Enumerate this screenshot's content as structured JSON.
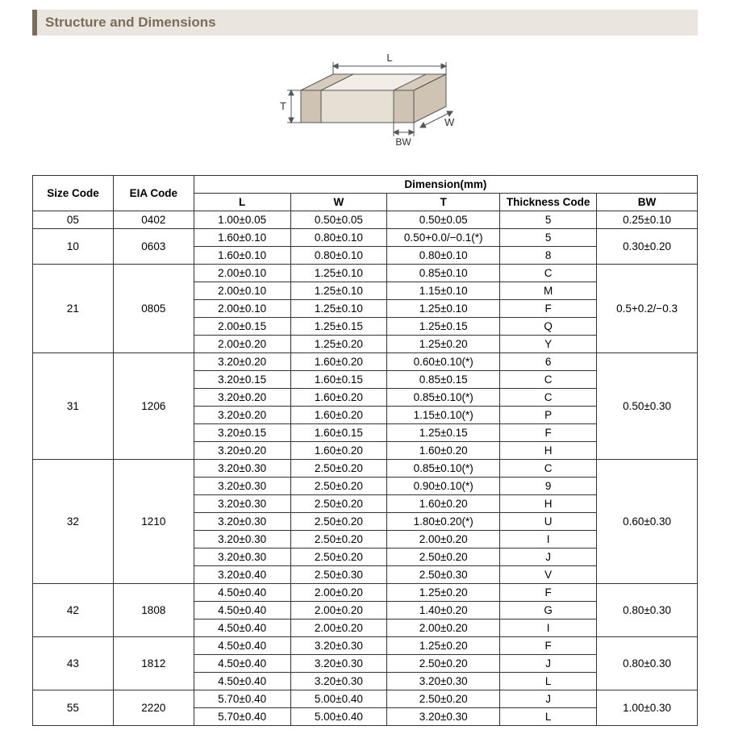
{
  "header": {
    "title": "Structure and Dimensions"
  },
  "diagram": {
    "labels": {
      "L": "L",
      "W": "W",
      "T": "T",
      "BW": "BW"
    },
    "stroke": "#555555",
    "fill1": "#f2ede6",
    "fill2": "#e6dfd4",
    "fill3": "#ded5c8"
  },
  "table": {
    "header": {
      "size_code": "Size Code",
      "eia_code": "EIA Code",
      "dimension": "Dimension(mm)",
      "L": "L",
      "W": "W",
      "T": "T",
      "thickness_code": "Thickness Code",
      "BW": "BW"
    },
    "groups": [
      {
        "size_code": "05",
        "eia_code": "0402",
        "bw": "0.25±0.10",
        "rows": [
          {
            "L": "1.00±0.05",
            "W": "0.50±0.05",
            "T": "0.50±0.05",
            "tc": "5"
          }
        ]
      },
      {
        "size_code": "10",
        "eia_code": "0603",
        "bw": "0.30±0.20",
        "rows": [
          {
            "L": "1.60±0.10",
            "W": "0.80±0.10",
            "T": "0.50+0.0/−0.1(*)",
            "tc": "5"
          },
          {
            "L": "1.60±0.10",
            "W": "0.80±0.10",
            "T": "0.80±0.10",
            "tc": "8"
          }
        ]
      },
      {
        "size_code": "21",
        "eia_code": "0805",
        "bw": "0.5+0.2/−0.3",
        "rows": [
          {
            "L": "2.00±0.10",
            "W": "1.25±0.10",
            "T": "0.85±0.10",
            "tc": "C"
          },
          {
            "L": "2.00±0.10",
            "W": "1.25±0.10",
            "T": "1.15±0.10",
            "tc": "M"
          },
          {
            "L": "2.00±0.10",
            "W": "1.25±0.10",
            "T": "1.25±0.10",
            "tc": "F"
          },
          {
            "L": "2.00±0.15",
            "W": "1.25±0.15",
            "T": "1.25±0.15",
            "tc": "Q"
          },
          {
            "L": "2.00±0.20",
            "W": "1.25±0.20",
            "T": "1.25±0.20",
            "tc": "Y"
          }
        ]
      },
      {
        "size_code": "31",
        "eia_code": "1206",
        "bw": "0.50±0.30",
        "rows": [
          {
            "L": "3.20±0.20",
            "W": "1.60±0.20",
            "T": "0.60±0.10(*)",
            "tc": "6"
          },
          {
            "L": "3.20±0.15",
            "W": "1.60±0.15",
            "T": "0.85±0.15",
            "tc": "C"
          },
          {
            "L": "3.20±0.20",
            "W": "1.60±0.20",
            "T": "0.85±0.10(*)",
            "tc": "C"
          },
          {
            "L": "3.20±0.20",
            "W": "1.60±0.20",
            "T": "1.15±0.10(*)",
            "tc": "P"
          },
          {
            "L": "3.20±0.15",
            "W": "1.60±0.15",
            "T": "1.25±0.15",
            "tc": "F"
          },
          {
            "L": "3.20±0.20",
            "W": "1.60±0.20",
            "T": "1.60±0.20",
            "tc": "H"
          }
        ]
      },
      {
        "size_code": "32",
        "eia_code": "1210",
        "bw": "0.60±0.30",
        "rows": [
          {
            "L": "3.20±0.30",
            "W": "2.50±0.20",
            "T": "0.85±0.10(*)",
            "tc": "C"
          },
          {
            "L": "3.20±0.30",
            "W": "2.50±0.20",
            "T": "0.90±0.10(*)",
            "tc": "9"
          },
          {
            "L": "3.20±0.30",
            "W": "2.50±0.20",
            "T": "1.60±0.20",
            "tc": "H"
          },
          {
            "L": "3.20±0.30",
            "W": "2.50±0.20",
            "T": "1.80±0.20(*)",
            "tc": "U"
          },
          {
            "L": "3.20±0.30",
            "W": "2.50±0.20",
            "T": "2.00±0.20",
            "tc": "I"
          },
          {
            "L": "3.20±0.30",
            "W": "2.50±0.20",
            "T": "2.50±0.20",
            "tc": "J"
          },
          {
            "L": "3.20±0.40",
            "W": "2.50±0.30",
            "T": "2.50±0.30",
            "tc": "V"
          }
        ]
      },
      {
        "size_code": "42",
        "eia_code": "1808",
        "bw": "0.80±0.30",
        "rows": [
          {
            "L": "4.50±0.40",
            "W": "2.00±0.20",
            "T": "1.25±0.20",
            "tc": "F"
          },
          {
            "L": "4.50±0.40",
            "W": "2.00±0.20",
            "T": "1.40±0.20",
            "tc": "G"
          },
          {
            "L": "4.50±0.40",
            "W": "2.00±0.20",
            "T": "2.00±0.20",
            "tc": "I"
          }
        ]
      },
      {
        "size_code": "43",
        "eia_code": "1812",
        "bw": "0.80±0.30",
        "rows": [
          {
            "L": "4.50±0.40",
            "W": "3.20±0.30",
            "T": "1.25±0.20",
            "tc": "F"
          },
          {
            "L": "4.50±0.40",
            "W": "3.20±0.30",
            "T": "2.50±0.20",
            "tc": "J"
          },
          {
            "L": "4.50±0.40",
            "W": "3.20±0.30",
            "T": "3.20±0.30",
            "tc": "L"
          }
        ]
      },
      {
        "size_code": "55",
        "eia_code": "2220",
        "bw": "1.00±0.30",
        "rows": [
          {
            "L": "5.70±0.40",
            "W": "5.00±0.40",
            "T": "2.50±0.20",
            "tc": "J"
          },
          {
            "L": "5.70±0.40",
            "W": "5.00±0.40",
            "T": "3.20±0.30",
            "tc": "L"
          }
        ]
      }
    ]
  }
}
